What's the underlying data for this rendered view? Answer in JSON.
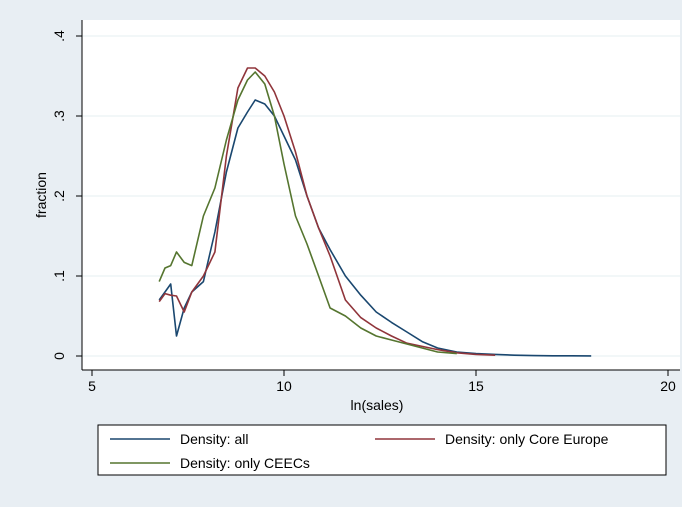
{
  "chart_data": {
    "type": "line",
    "title": "",
    "xlabel": "ln(sales)",
    "ylabel": "fraction",
    "xlim": [
      5,
      20
    ],
    "ylim": [
      0,
      0.4
    ],
    "xticks": [
      5,
      10,
      15,
      20
    ],
    "yticks": [
      0,
      0.1,
      0.2,
      0.3,
      0.4
    ],
    "xtick_labels": [
      "5",
      "10",
      "15",
      "20"
    ],
    "ytick_labels": [
      "0",
      ".1",
      ".2",
      ".3",
      ".4"
    ],
    "grid": "horizontal",
    "legend_position": "bottom",
    "series": [
      {
        "name": "Density: all",
        "color": "#1a476f",
        "x": [
          6.75,
          6.9,
          7.05,
          7.2,
          7.4,
          7.6,
          7.9,
          8.2,
          8.5,
          8.8,
          9.05,
          9.25,
          9.5,
          9.75,
          10.0,
          10.3,
          10.6,
          10.9,
          11.2,
          11.6,
          12.0,
          12.4,
          12.8,
          13.2,
          13.6,
          14.0,
          14.5,
          15.0,
          15.5,
          16.0,
          16.5,
          17.0,
          17.5,
          18.0
        ],
        "y": [
          0.07,
          0.08,
          0.09,
          0.025,
          0.06,
          0.08,
          0.093,
          0.155,
          0.23,
          0.285,
          0.305,
          0.32,
          0.315,
          0.3,
          0.275,
          0.245,
          0.2,
          0.16,
          0.133,
          0.1,
          0.076,
          0.055,
          0.042,
          0.03,
          0.018,
          0.01,
          0.005,
          0.003,
          0.002,
          0.001,
          0.0005,
          0.0003,
          0.0002,
          0.0001
        ]
      },
      {
        "name": "Density: only Core Europe",
        "color": "#90353b",
        "x": [
          6.75,
          6.9,
          7.05,
          7.2,
          7.4,
          7.6,
          7.9,
          8.2,
          8.5,
          8.8,
          9.05,
          9.25,
          9.5,
          9.75,
          10.0,
          10.3,
          10.6,
          10.9,
          11.2,
          11.6,
          12.0,
          12.4,
          12.8,
          13.2,
          13.6,
          14.0,
          14.5,
          15.0,
          15.5
        ],
        "y": [
          0.068,
          0.078,
          0.076,
          0.075,
          0.055,
          0.08,
          0.1,
          0.13,
          0.25,
          0.335,
          0.36,
          0.36,
          0.35,
          0.33,
          0.3,
          0.255,
          0.2,
          0.16,
          0.125,
          0.07,
          0.048,
          0.035,
          0.025,
          0.016,
          0.012,
          0.008,
          0.004,
          0.002,
          0.001
        ]
      },
      {
        "name": "Density: only CEECs",
        "color": "#55752f",
        "x": [
          6.75,
          6.9,
          7.05,
          7.2,
          7.4,
          7.6,
          7.9,
          8.2,
          8.5,
          8.8,
          9.05,
          9.25,
          9.5,
          9.75,
          10.0,
          10.3,
          10.6,
          10.9,
          11.2,
          11.6,
          12.0,
          12.4,
          12.8,
          13.2,
          13.6,
          14.0,
          14.5
        ],
        "y": [
          0.093,
          0.11,
          0.113,
          0.13,
          0.117,
          0.113,
          0.175,
          0.21,
          0.27,
          0.32,
          0.345,
          0.355,
          0.34,
          0.3,
          0.24,
          0.175,
          0.14,
          0.1,
          0.06,
          0.05,
          0.035,
          0.025,
          0.02,
          0.015,
          0.01,
          0.005,
          0.003
        ]
      }
    ]
  }
}
